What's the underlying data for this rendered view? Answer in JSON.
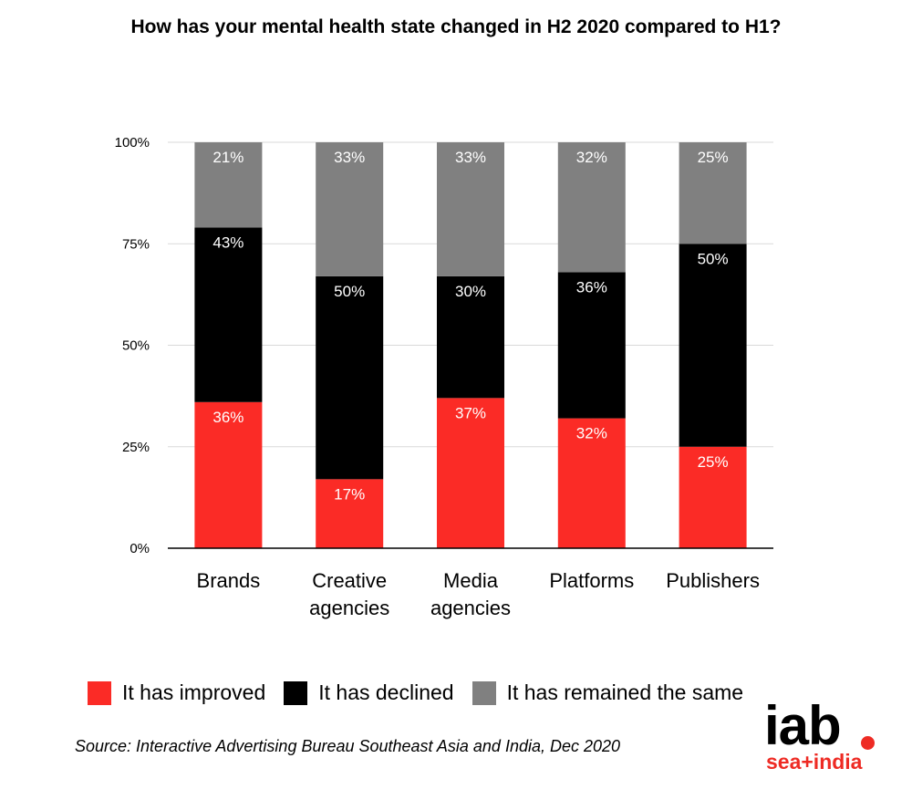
{
  "title": "How has your mental health state changed in H2 2020 compared to H1?",
  "colors": {
    "improved": "#fb2b26",
    "declined": "#000000",
    "same": "#808080"
  },
  "chart_data": {
    "type": "bar",
    "stacked": true,
    "title": "How has your mental health state changed in H2 2020 compared to H1?",
    "categories": [
      [
        "Brands"
      ],
      [
        "Creative",
        "agencies"
      ],
      [
        "Media",
        "agencies"
      ],
      [
        "Platforms"
      ],
      [
        "Publishers"
      ]
    ],
    "series": [
      {
        "name": "It has improved",
        "values": [
          36,
          17,
          37,
          32,
          25
        ],
        "labels": [
          "36%",
          "17%",
          "37%",
          "32%",
          "25%"
        ]
      },
      {
        "name": "It has declined",
        "values": [
          43,
          50,
          30,
          36,
          50
        ],
        "labels": [
          "43%",
          "50%",
          "30%",
          "36%",
          "50%"
        ]
      },
      {
        "name": "It has remained the same",
        "values": [
          21,
          33,
          33,
          32,
          25
        ],
        "labels": [
          "21%",
          "33%",
          "33%",
          "32%",
          "25%"
        ]
      }
    ],
    "yticks": [
      "0%",
      "25%",
      "50%",
      "75%",
      "100%"
    ],
    "ylim": [
      0,
      100
    ],
    "grid": true,
    "legend_position": "bottom"
  },
  "legend": {
    "improved": "It has improved",
    "declined": "It has declined",
    "same": "It has remained the same"
  },
  "source": "Source: Interactive Advertising Bureau Southeast Asia and India, Dec 2020",
  "logo": {
    "main": "iab",
    "sub": "sea+india"
  }
}
